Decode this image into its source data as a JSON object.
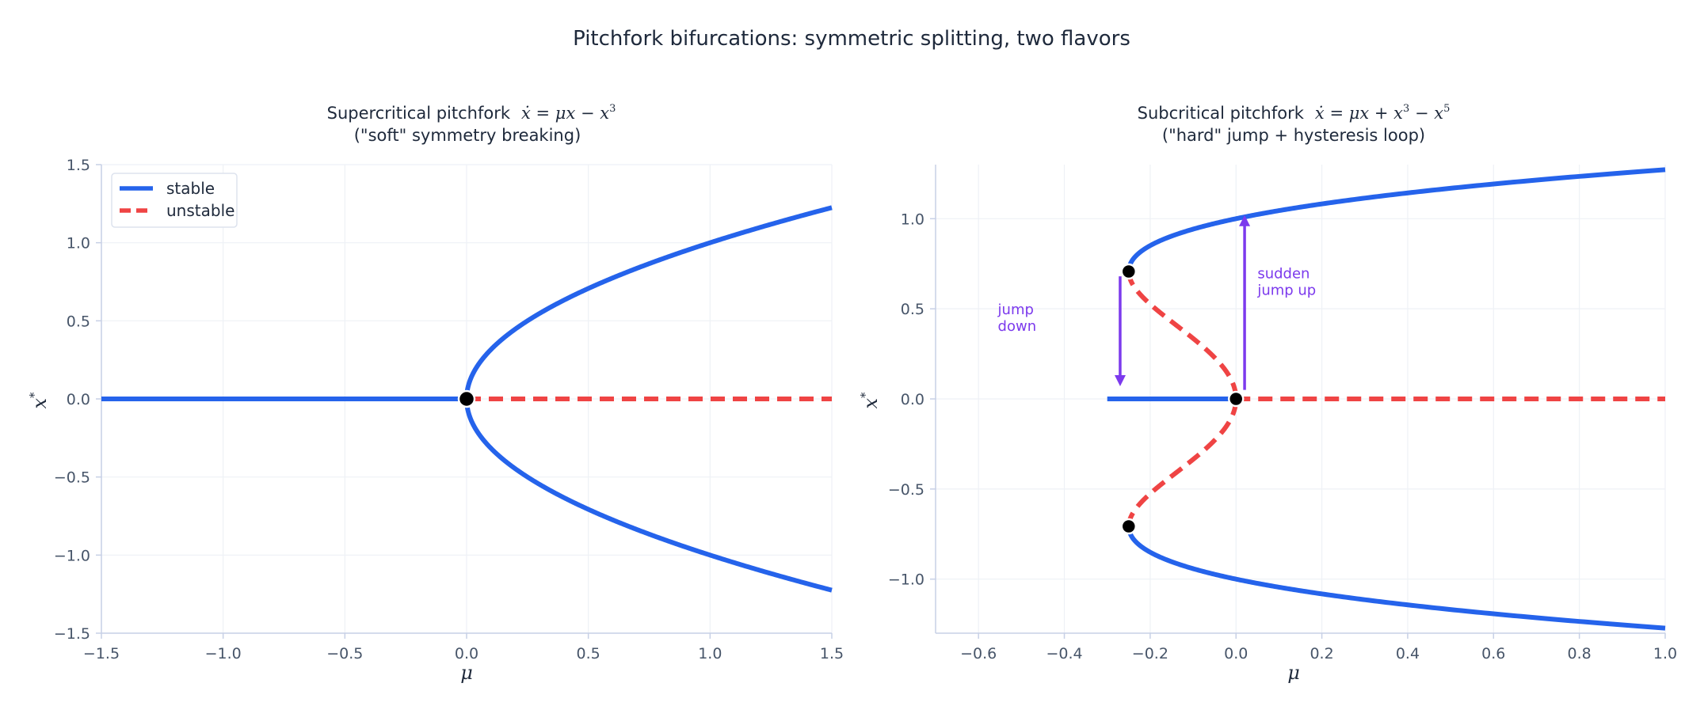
{
  "figure": {
    "suptitle": "Pitchfork bifurcations: symmetric splitting, two flavors"
  },
  "colors": {
    "stable": "#2563eb",
    "unstable": "#ef4444",
    "annotation": "#7c3aed",
    "point": "#000000",
    "text": "#1e293b",
    "tick": "#475569",
    "axis": "#c7d0e6",
    "grid": "#eef1f6"
  },
  "chart_data": [
    {
      "type": "line",
      "title_line1": "Supercritical pitchfork",
      "title_eq": "ẋ = μx − x",
      "title_eq_sup": "3",
      "title_line2": "(\"soft\" symmetry breaking)",
      "xlabel": "μ",
      "ylabel": "x",
      "ylabel_sup": "*",
      "xlim": [
        -1.5,
        1.5
      ],
      "ylim": [
        -1.5,
        1.5
      ],
      "xticks": [
        -1.5,
        -1.0,
        -0.5,
        0.0,
        0.5,
        1.0,
        1.5
      ],
      "yticks": [
        -1.5,
        -1.0,
        -0.5,
        0.0,
        0.5,
        1.0,
        1.5
      ],
      "grid": true,
      "legend": {
        "placement": "top-left",
        "entries": [
          {
            "name": "stable",
            "style": "solid"
          },
          {
            "name": "unstable",
            "style": "dashed"
          }
        ]
      },
      "series": [
        {
          "name": "stable",
          "style": "solid",
          "function": "x = 0 for μ < 0",
          "mu_range": [
            -1.5,
            0
          ]
        },
        {
          "name": "stable",
          "style": "solid",
          "function": "x = +√μ",
          "mu_range": [
            0,
            1.5
          ]
        },
        {
          "name": "stable",
          "style": "solid",
          "function": "x = −√μ",
          "mu_range": [
            0,
            1.5
          ]
        },
        {
          "name": "unstable",
          "style": "dashed",
          "function": "x = 0 for μ > 0",
          "mu_range": [
            0,
            1.5
          ]
        }
      ],
      "points": [
        {
          "mu": 0.0,
          "x": 0.0
        }
      ]
    },
    {
      "type": "line",
      "title_line1": "Subcritical pitchfork",
      "title_eq": "ẋ = μx + x",
      "title_eq_sup": "3",
      "title_eq_mid": " − x",
      "title_eq_sup2": "5",
      "title_line2": "(\"hard\" jump + hysteresis loop)",
      "xlabel": "μ",
      "ylabel": "x",
      "ylabel_sup": "*",
      "xlim": [
        -0.7,
        1.0
      ],
      "ylim": [
        -1.3,
        1.3
      ],
      "xticks": [
        -0.6,
        -0.4,
        -0.2,
        0.0,
        0.2,
        0.4,
        0.6,
        0.8,
        1.0
      ],
      "yticks": [
        -1.0,
        -0.5,
        0.0,
        0.5,
        1.0
      ],
      "grid": true,
      "series": [
        {
          "name": "stable",
          "style": "solid",
          "function": "x = 0",
          "mu_range": [
            -0.3,
            0
          ]
        },
        {
          "name": "unstable",
          "style": "dashed",
          "function": "x = 0",
          "mu_range": [
            0,
            1.0
          ]
        },
        {
          "name": "stable",
          "style": "solid",
          "function": "x² = (1 + √(1 + 4μ)) / 2 (upper/lower)",
          "mu_range": [
            -0.25,
            1.0
          ]
        },
        {
          "name": "unstable",
          "style": "dashed",
          "function": "x² = (1 − √(1 + 4μ)) / 2 (upper/lower)",
          "mu_range": [
            -0.25,
            0
          ]
        }
      ],
      "points": [
        {
          "mu": -0.25,
          "x": 0.7071
        },
        {
          "mu": -0.25,
          "x": -0.7071
        },
        {
          "mu": 0.0,
          "x": 0.0
        }
      ],
      "annotations": [
        {
          "text_lines": [
            "jump",
            "down"
          ],
          "arrow_mu": -0.27,
          "arrow_from_x": 0.68,
          "arrow_to_x": 0.07,
          "text_mu": -0.555,
          "text_x": 0.47
        },
        {
          "text_lines": [
            "sudden",
            "jump up"
          ],
          "arrow_mu": 0.02,
          "arrow_from_x": 0.05,
          "arrow_to_x": 1.02,
          "text_mu": 0.05,
          "text_x": 0.67
        }
      ]
    }
  ]
}
